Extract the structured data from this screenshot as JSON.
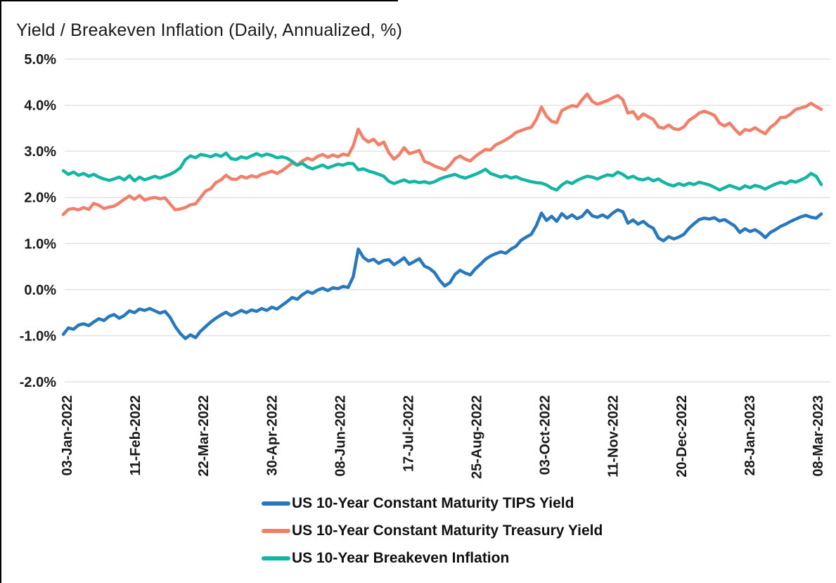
{
  "chart_data": {
    "type": "line",
    "title": "Yield / Breakeven Inflation (Daily, Annualized, %)",
    "xlabel": "",
    "ylabel": "",
    "ylim": [
      -2.0,
      5.0
    ],
    "grid": true,
    "grid_color": "#e2e2e2",
    "text_color": "#1a1a1a",
    "border_color": "#000000",
    "legend_position": "bottom",
    "y_axis": {
      "tick_values": [
        5.0,
        4.0,
        3.0,
        2.0,
        1.0,
        0.0,
        -1.0,
        -2.0
      ],
      "tick_labels": [
        "5.0%",
        "4.0%",
        "3.0%",
        "2.0%",
        "1.0%",
        "0.0%",
        "-1.0%",
        "-2.0%"
      ]
    },
    "x_axis": {
      "tick_labels": [
        "03-Jan-2022",
        "11-Feb-2022",
        "22-Mar-2022",
        "30-Apr-2022",
        "08-Jun-2022",
        "17-Jul-2022",
        "25-Aug-2022",
        "03-Oct-2022",
        "11-Nov-2022",
        "20-Dec-2022",
        "28-Jan-2023",
        "08-Mar-2023"
      ]
    },
    "series": [
      {
        "key": "tips",
        "name": "US 10-Year Constant Maturity TIPS Yield",
        "color": "#2878bd",
        "values": [
          -0.97,
          -0.83,
          -0.86,
          -0.77,
          -0.74,
          -0.78,
          -0.7,
          -0.63,
          -0.67,
          -0.58,
          -0.54,
          -0.62,
          -0.56,
          -0.46,
          -0.5,
          -0.42,
          -0.45,
          -0.41,
          -0.46,
          -0.51,
          -0.47,
          -0.6,
          -0.8,
          -0.95,
          -1.06,
          -0.98,
          -1.04,
          -0.9,
          -0.8,
          -0.7,
          -0.62,
          -0.55,
          -0.49,
          -0.56,
          -0.51,
          -0.45,
          -0.5,
          -0.44,
          -0.47,
          -0.41,
          -0.45,
          -0.38,
          -0.42,
          -0.34,
          -0.26,
          -0.17,
          -0.21,
          -0.11,
          -0.04,
          -0.08,
          -0.01,
          0.03,
          -0.02,
          0.04,
          0.02,
          0.07,
          0.05,
          0.28,
          0.88,
          0.7,
          0.62,
          0.66,
          0.57,
          0.63,
          0.65,
          0.54,
          0.61,
          0.69,
          0.55,
          0.61,
          0.67,
          0.51,
          0.46,
          0.37,
          0.2,
          0.08,
          0.15,
          0.33,
          0.42,
          0.36,
          0.32,
          0.45,
          0.55,
          0.66,
          0.73,
          0.78,
          0.82,
          0.79,
          0.88,
          0.94,
          1.07,
          1.14,
          1.2,
          1.39,
          1.66,
          1.5,
          1.59,
          1.48,
          1.65,
          1.55,
          1.62,
          1.54,
          1.59,
          1.72,
          1.6,
          1.57,
          1.62,
          1.56,
          1.66,
          1.73,
          1.69,
          1.44,
          1.51,
          1.42,
          1.48,
          1.39,
          1.33,
          1.12,
          1.06,
          1.15,
          1.1,
          1.14,
          1.2,
          1.33,
          1.43,
          1.52,
          1.55,
          1.53,
          1.56,
          1.49,
          1.52,
          1.45,
          1.38,
          1.24,
          1.32,
          1.26,
          1.3,
          1.23,
          1.13,
          1.24,
          1.3,
          1.37,
          1.42,
          1.48,
          1.53,
          1.58,
          1.61,
          1.57,
          1.55,
          1.64
        ]
      },
      {
        "key": "treasury",
        "name": "US 10-Year Constant Maturity Treasury Yield",
        "color": "#f0806a",
        "values": [
          1.63,
          1.74,
          1.76,
          1.73,
          1.78,
          1.74,
          1.87,
          1.83,
          1.76,
          1.79,
          1.81,
          1.88,
          1.96,
          2.03,
          1.96,
          2.04,
          1.94,
          1.98,
          2.0,
          1.97,
          1.99,
          1.86,
          1.73,
          1.75,
          1.78,
          1.84,
          1.86,
          2.0,
          2.14,
          2.19,
          2.32,
          2.38,
          2.48,
          2.4,
          2.39,
          2.46,
          2.42,
          2.47,
          2.44,
          2.5,
          2.53,
          2.57,
          2.52,
          2.58,
          2.66,
          2.75,
          2.7,
          2.79,
          2.85,
          2.81,
          2.89,
          2.93,
          2.87,
          2.92,
          2.88,
          2.94,
          2.91,
          3.12,
          3.48,
          3.28,
          3.2,
          3.26,
          3.14,
          3.2,
          2.97,
          2.83,
          2.92,
          3.08,
          2.95,
          2.98,
          3.02,
          2.78,
          2.74,
          2.68,
          2.64,
          2.6,
          2.7,
          2.84,
          2.9,
          2.83,
          2.79,
          2.89,
          2.97,
          3.04,
          3.03,
          3.14,
          3.19,
          3.25,
          3.32,
          3.41,
          3.45,
          3.49,
          3.52,
          3.69,
          3.96,
          3.76,
          3.65,
          3.62,
          3.88,
          3.94,
          3.99,
          3.97,
          4.12,
          4.24,
          4.08,
          4.02,
          4.06,
          4.1,
          4.16,
          4.21,
          4.12,
          3.83,
          3.86,
          3.7,
          3.81,
          3.75,
          3.69,
          3.53,
          3.5,
          3.57,
          3.49,
          3.47,
          3.53,
          3.67,
          3.74,
          3.83,
          3.87,
          3.83,
          3.78,
          3.61,
          3.55,
          3.61,
          3.48,
          3.37,
          3.47,
          3.45,
          3.51,
          3.44,
          3.38,
          3.52,
          3.6,
          3.73,
          3.74,
          3.81,
          3.91,
          3.94,
          3.97,
          4.04,
          3.97,
          3.91
        ]
      },
      {
        "key": "breakeven",
        "name": "US 10-Year Breakeven Inflation",
        "color": "#14b5a3",
        "values": [
          2.58,
          2.5,
          2.55,
          2.48,
          2.52,
          2.46,
          2.5,
          2.44,
          2.4,
          2.37,
          2.4,
          2.44,
          2.38,
          2.47,
          2.36,
          2.44,
          2.38,
          2.42,
          2.46,
          2.42,
          2.46,
          2.5,
          2.56,
          2.64,
          2.82,
          2.9,
          2.86,
          2.93,
          2.91,
          2.88,
          2.93,
          2.89,
          2.96,
          2.84,
          2.82,
          2.88,
          2.85,
          2.9,
          2.95,
          2.9,
          2.94,
          2.91,
          2.86,
          2.88,
          2.85,
          2.78,
          2.7,
          2.74,
          2.66,
          2.62,
          2.66,
          2.7,
          2.64,
          2.68,
          2.72,
          2.7,
          2.74,
          2.73,
          2.6,
          2.62,
          2.57,
          2.54,
          2.5,
          2.46,
          2.35,
          2.3,
          2.34,
          2.38,
          2.33,
          2.35,
          2.32,
          2.34,
          2.31,
          2.34,
          2.4,
          2.44,
          2.47,
          2.5,
          2.45,
          2.42,
          2.46,
          2.5,
          2.55,
          2.61,
          2.52,
          2.48,
          2.44,
          2.47,
          2.42,
          2.45,
          2.4,
          2.37,
          2.34,
          2.32,
          2.31,
          2.27,
          2.2,
          2.16,
          2.27,
          2.34,
          2.3,
          2.37,
          2.42,
          2.46,
          2.44,
          2.4,
          2.45,
          2.49,
          2.47,
          2.55,
          2.5,
          2.42,
          2.46,
          2.4,
          2.38,
          2.42,
          2.36,
          2.4,
          2.33,
          2.28,
          2.25,
          2.3,
          2.26,
          2.31,
          2.28,
          2.33,
          2.3,
          2.27,
          2.22,
          2.16,
          2.21,
          2.26,
          2.22,
          2.18,
          2.25,
          2.21,
          2.26,
          2.23,
          2.18,
          2.24,
          2.29,
          2.33,
          2.3,
          2.36,
          2.33,
          2.38,
          2.43,
          2.52,
          2.46,
          2.28
        ]
      }
    ]
  }
}
